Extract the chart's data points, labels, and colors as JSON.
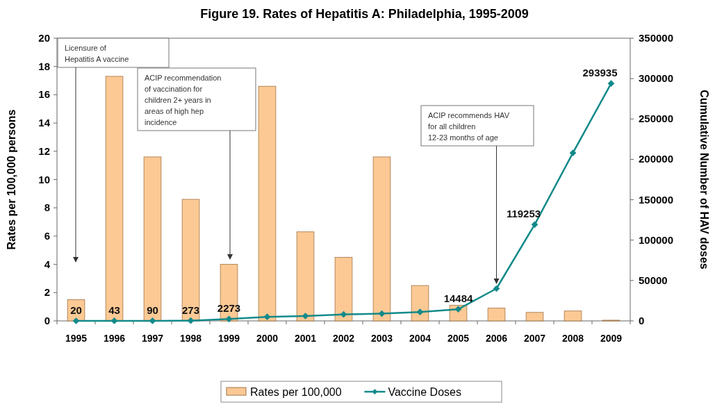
{
  "chart_data": {
    "type": "bar",
    "title": "Figure 19.  Rates of Hepatitis A: Philadelphia, 1995-2009",
    "ylabel": "Rates per 100,000 persons",
    "y2label": "Cumulative Number of HAV doses",
    "categories": [
      "1995",
      "1996",
      "1997",
      "1998",
      "1999",
      "2000",
      "2001",
      "2002",
      "2003",
      "2004",
      "2005",
      "2006",
      "2007",
      "2008",
      "2009"
    ],
    "series": [
      {
        "name": "Rates per 100,000",
        "color": "#fcc995",
        "values": [
          1.5,
          17.3,
          11.6,
          8.6,
          4.0,
          16.6,
          6.3,
          4.5,
          11.6,
          2.5,
          1.1,
          0.9,
          0.6,
          0.7,
          0.05
        ]
      },
      {
        "name": "Vaccine Doses",
        "type": "line",
        "axis": "y2",
        "color": "#138a8a",
        "marker": "diamond",
        "values": [
          20,
          43,
          90,
          273,
          2273,
          5000,
          6000,
          8000,
          9000,
          11000,
          14484,
          40000,
          119253,
          208000,
          293935
        ],
        "value_labels": [
          "20",
          "43",
          "90",
          "273",
          "2273",
          null,
          null,
          null,
          null,
          null,
          "14484",
          null,
          "119253",
          null,
          "293935"
        ]
      }
    ],
    "ylim": [
      0,
      20
    ],
    "yticks": [
      0,
      2,
      4,
      6,
      8,
      10,
      12,
      14,
      16,
      18,
      20
    ],
    "y2lim": [
      0,
      350000
    ],
    "y2ticks": [
      0,
      50000,
      100000,
      150000,
      200000,
      250000,
      300000,
      350000
    ],
    "annotations": [
      "Licensure of Hepatitis A vaccine",
      "ACIP recommendation of vaccination for children 2+ years in areas of high hep incidence",
      {
        "text": "ACIP recommends HAV for all children 12-23 months of age",
        "x": "2006",
        "y": 2.6
      }
    ],
    "legend": "bottom",
    "grid": false
  }
}
